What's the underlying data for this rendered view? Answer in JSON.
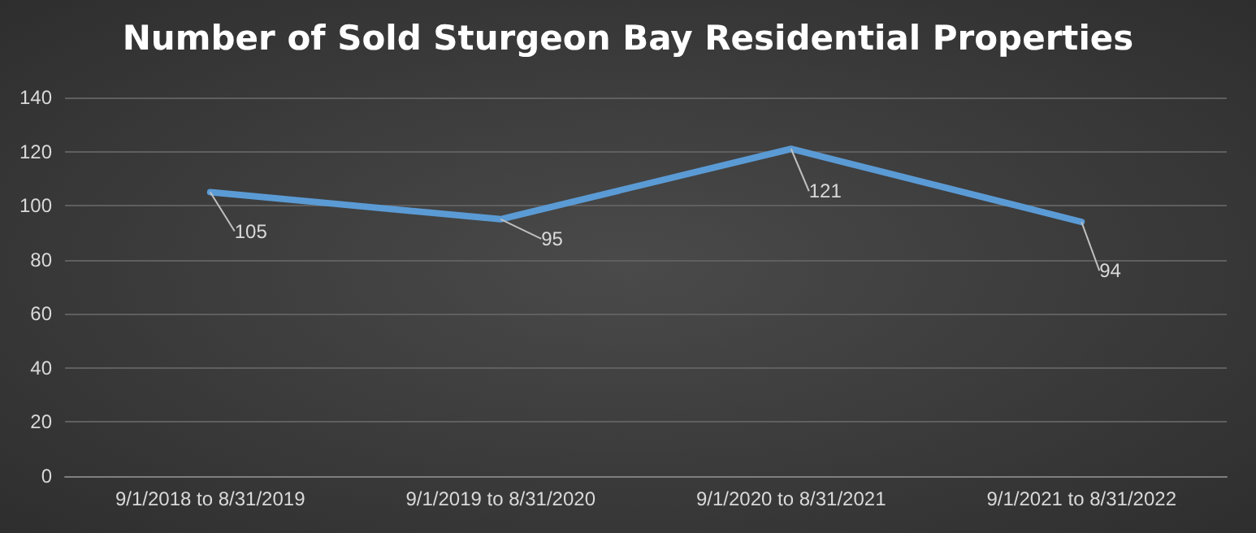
{
  "chart_data": {
    "type": "line",
    "title": "Number of Sold Sturgeon Bay Residential Properties",
    "categories": [
      "9/1/2018 to 8/31/2019",
      "9/1/2019 to 8/31/2020",
      "9/1/2020 to 8/31/2021",
      "9/1/2021 to 8/31/2022"
    ],
    "series": [
      {
        "color": "#5b9bd5",
        "values": [
          105,
          95,
          121,
          94
        ]
      }
    ],
    "ylim": [
      0,
      140
    ],
    "yticks": [
      0,
      20,
      40,
      60,
      80,
      100,
      120,
      140
    ],
    "grid": "y",
    "data_labels": true,
    "marker": "none",
    "line_style": "solid"
  }
}
